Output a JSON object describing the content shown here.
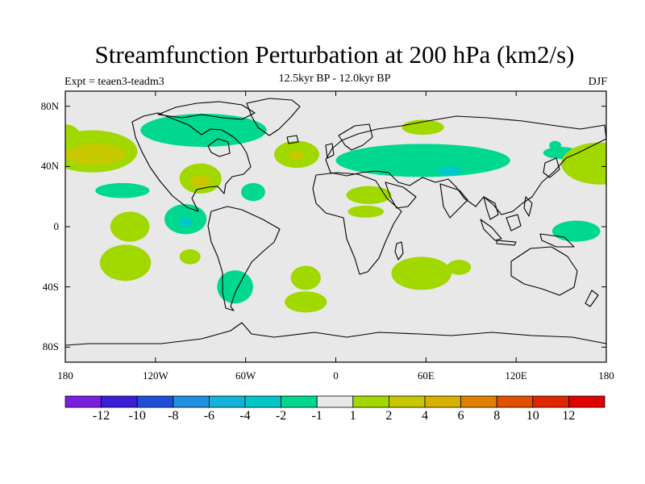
{
  "title": "Streamfunction Perturbation at 200 hPa (km2/s)",
  "left_subtitle": "Expt = teaen3-teadm3",
  "center_subtitle": "12.5kyr BP - 12.0kyr BP",
  "right_subtitle": "DJF",
  "colors": {
    "ocean_bg": "#e8e8e8",
    "coast": "#000000",
    "neg_1": "#00d890",
    "neg_2": "#00c8c8",
    "neg_3": "#00b0d8",
    "pos_1": "#a0d800",
    "pos_2": "#c8c800",
    "pos_3": "#d8b000"
  },
  "map": {
    "lat_ticks": [
      "80N",
      "40N",
      "0",
      "40S",
      "80S"
    ],
    "lon_ticks": [
      "180",
      "120W",
      "60W",
      "0",
      "60E",
      "120E",
      "180"
    ],
    "lat_values": [
      80,
      40,
      0,
      -40,
      -80
    ],
    "lon_values": [
      -180,
      -120,
      -60,
      0,
      60,
      120,
      180
    ],
    "lat_range": [
      -90,
      90
    ],
    "lon_range": [
      -180,
      180
    ]
  },
  "colorbar": {
    "labels": [
      "-12",
      "-10",
      "-8",
      "-6",
      "-4",
      "-2",
      "-1",
      "1",
      "2",
      "4",
      "6",
      "8",
      "10",
      "12"
    ],
    "colors": [
      "#7a1fe0",
      "#3a1fd8",
      "#1f4fd8",
      "#1f8fe0",
      "#10b4d8",
      "#00c8c8",
      "#00d890",
      "#e8e8e8",
      "#a0d800",
      "#c8c800",
      "#d8b000",
      "#e08000",
      "#e05000",
      "#e02800",
      "#e00000"
    ]
  },
  "chart_data": {
    "type": "contour-map",
    "title": "Streamfunction Perturbation at 200 hPa (km2/s)",
    "projection": "cylindrical-equidistant",
    "season": "DJF",
    "levels": [
      -12,
      -10,
      -8,
      -6,
      -4,
      -2,
      -1,
      1,
      2,
      4,
      6,
      8,
      10,
      12
    ],
    "features": [
      {
        "name": "north-pacific-positive",
        "lon": -160,
        "lat": 48,
        "value": 2
      },
      {
        "name": "north-pacific-core",
        "lon": -165,
        "lat": 48,
        "value": 4
      },
      {
        "name": "canada-negative",
        "lon": -90,
        "lat": 65,
        "value": -2
      },
      {
        "name": "southeast-us-positive",
        "lon": -90,
        "lat": 30,
        "value": 4
      },
      {
        "name": "north-atlantic-positive",
        "lon": -25,
        "lat": 48,
        "value": 2
      },
      {
        "name": "eurasia-negative",
        "lon": 60,
        "lat": 45,
        "value": -2
      },
      {
        "name": "eurasia-core",
        "lon": 78,
        "lat": 37,
        "value": -4
      },
      {
        "name": "arctic-siberia-positive",
        "lon": 55,
        "lat": 65,
        "value": 2
      },
      {
        "name": "north-africa-positive",
        "lon": 20,
        "lat": 22,
        "value": 2
      },
      {
        "name": "east-china-negative",
        "lon": 145,
        "lat": 52,
        "value": -2
      },
      {
        "name": "nw-pacific-positive",
        "lon": 175,
        "lat": 45,
        "value": 2
      },
      {
        "name": "tropical-east-pacific-negative",
        "lon": -140,
        "lat": 23,
        "value": -2
      },
      {
        "name": "central-america-negative",
        "lon": -100,
        "lat": 6,
        "value": -2
      },
      {
        "name": "caribbean-negative",
        "lon": -55,
        "lat": 23,
        "value": -2
      },
      {
        "name": "equatorial-pacific-positive",
        "lon": -135,
        "lat": -2,
        "value": 2
      },
      {
        "name": "west-pacific-negative",
        "lon": 160,
        "lat": -3,
        "value": -2
      },
      {
        "name": "south-america-negative",
        "lon": -65,
        "lat": -40,
        "value": -2
      },
      {
        "name": "south-pacific-positive",
        "lon": -140,
        "lat": -25,
        "value": 2
      },
      {
        "name": "south-atlantic-positive",
        "lon": -20,
        "lat": -50,
        "value": 2
      },
      {
        "name": "south-indian-positive",
        "lon": 55,
        "lat": -30,
        "value": 2
      }
    ]
  }
}
